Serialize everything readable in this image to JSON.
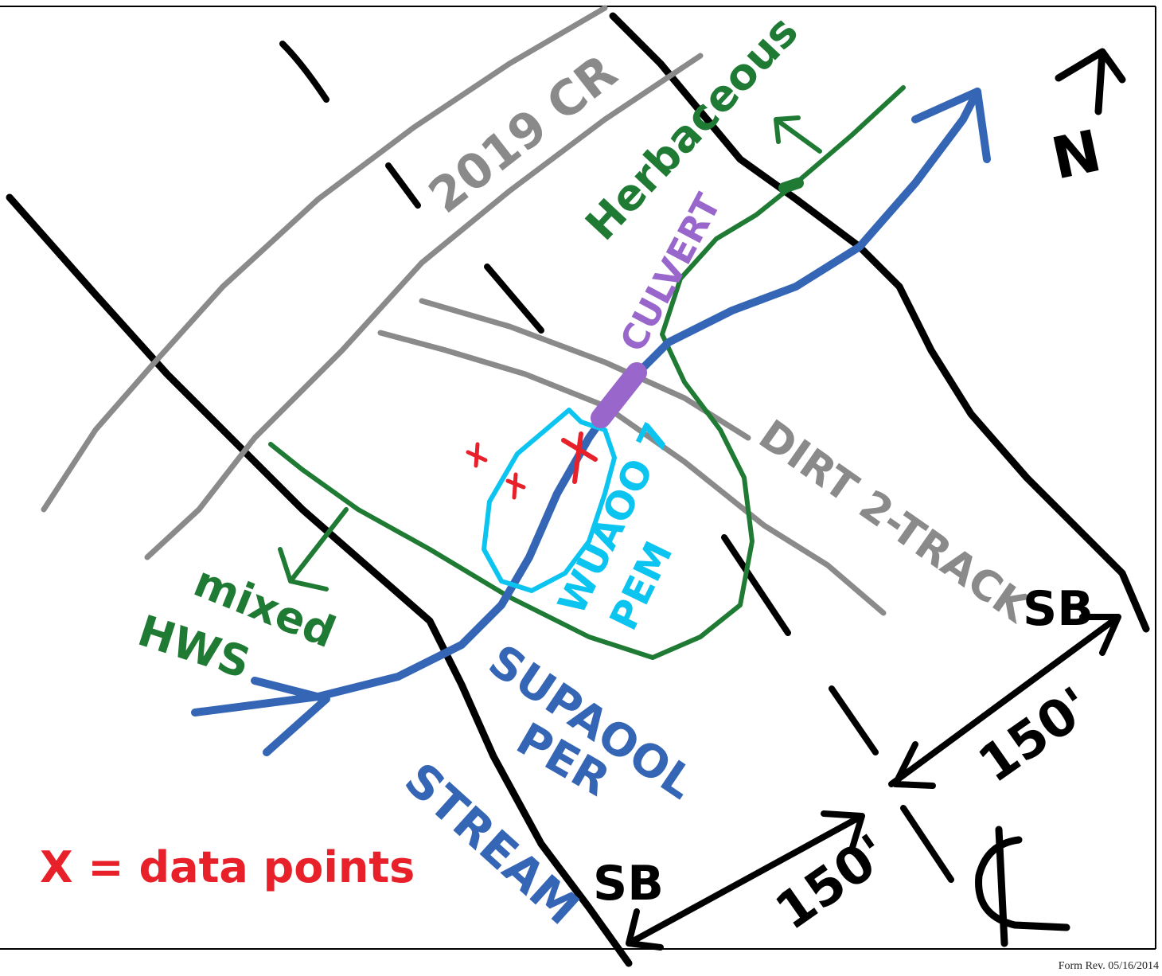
{
  "labels": {
    "cr_2019": "2019 CR",
    "herbaceous": "Herbaceous",
    "culvert": "CULVERT",
    "dirt_track": "DIRT 2-TRACK",
    "wetland_line1": "WUAOO 7",
    "wetland_line2": "PEM",
    "stream_line1": "SUPAOOL",
    "stream_line2": "PER",
    "stream_line3": "STREAM",
    "mixed_line1": "mixed",
    "mixed_line2": "HWS",
    "legend": "X = data points",
    "sb_right": "SB",
    "sb_bottom": "SB",
    "dist_right": "150'",
    "dist_bottom": "150'",
    "north": "N",
    "centerline": "CL"
  },
  "footer": {
    "form_rev": "Form Rev. 05/16/2014"
  },
  "colors": {
    "boundary": "#000000",
    "road": "#8a8a8a",
    "vegetation": "#1f7a34",
    "stream": "#3566b5",
    "wetland": "#0cc4f0",
    "culvert": "#9966cc",
    "data_point": "#e8202a"
  }
}
